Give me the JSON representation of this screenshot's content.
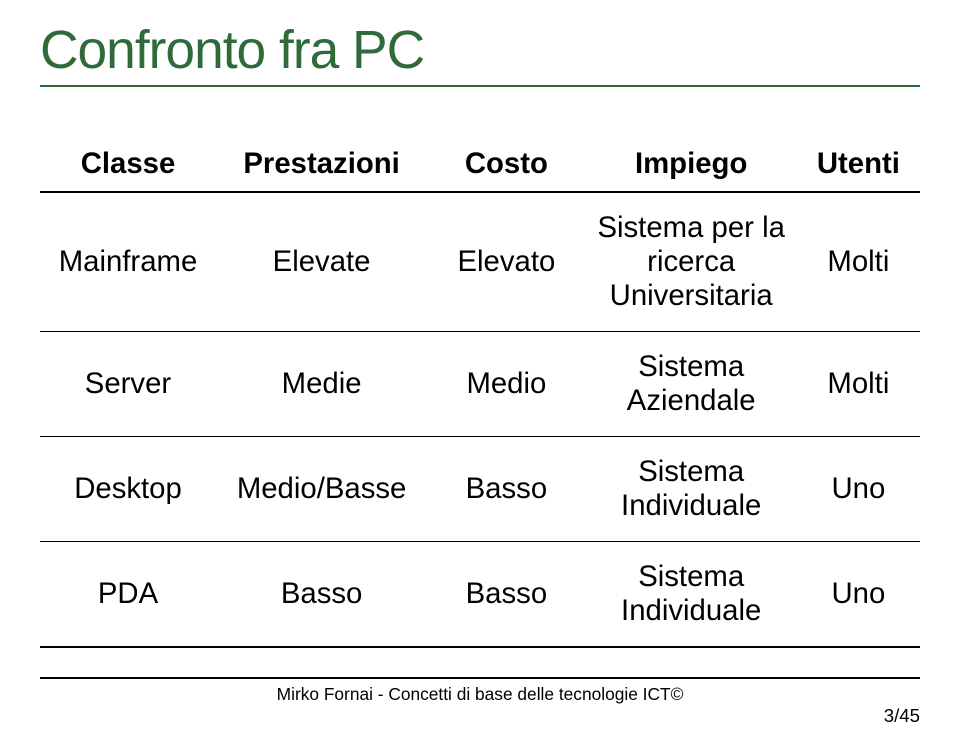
{
  "title": {
    "text": "Confronto fra PC",
    "color": "#2f6b3a",
    "fontsize_pt": 40,
    "underline_color": "#2f6b3a"
  },
  "table": {
    "type": "table",
    "header_fontsize_pt": 22,
    "cell_fontsize_pt": 22,
    "text_color": "#000000",
    "border_color": "#000000",
    "columns": [
      "Classe",
      "Prestazioni",
      "Costo",
      "Impiego",
      "Utenti"
    ],
    "col_widths_pct": [
      20,
      24,
      18,
      24,
      14
    ],
    "rows": [
      [
        "Mainframe",
        "Elevate",
        "Elevato",
        "Sistema per la ricerca Universitaria",
        "Molti"
      ],
      [
        "Server",
        "Medie",
        "Medio",
        "Sistema Aziendale",
        "Molti"
      ],
      [
        "Desktop",
        "Medio/Basse",
        "Basso",
        "Sistema Individuale",
        "Uno"
      ],
      [
        "PDA",
        "Basso",
        "Basso",
        "Sistema Individuale",
        "Uno"
      ]
    ]
  },
  "footer": {
    "text": "Mirko Fornai - Concetti di base delle tecnologie ICT©",
    "fontsize_pt": 13,
    "color": "#000000",
    "rule_color": "#000000"
  },
  "page_number": {
    "text": "3/45",
    "fontsize_pt": 14,
    "color": "#000000"
  }
}
